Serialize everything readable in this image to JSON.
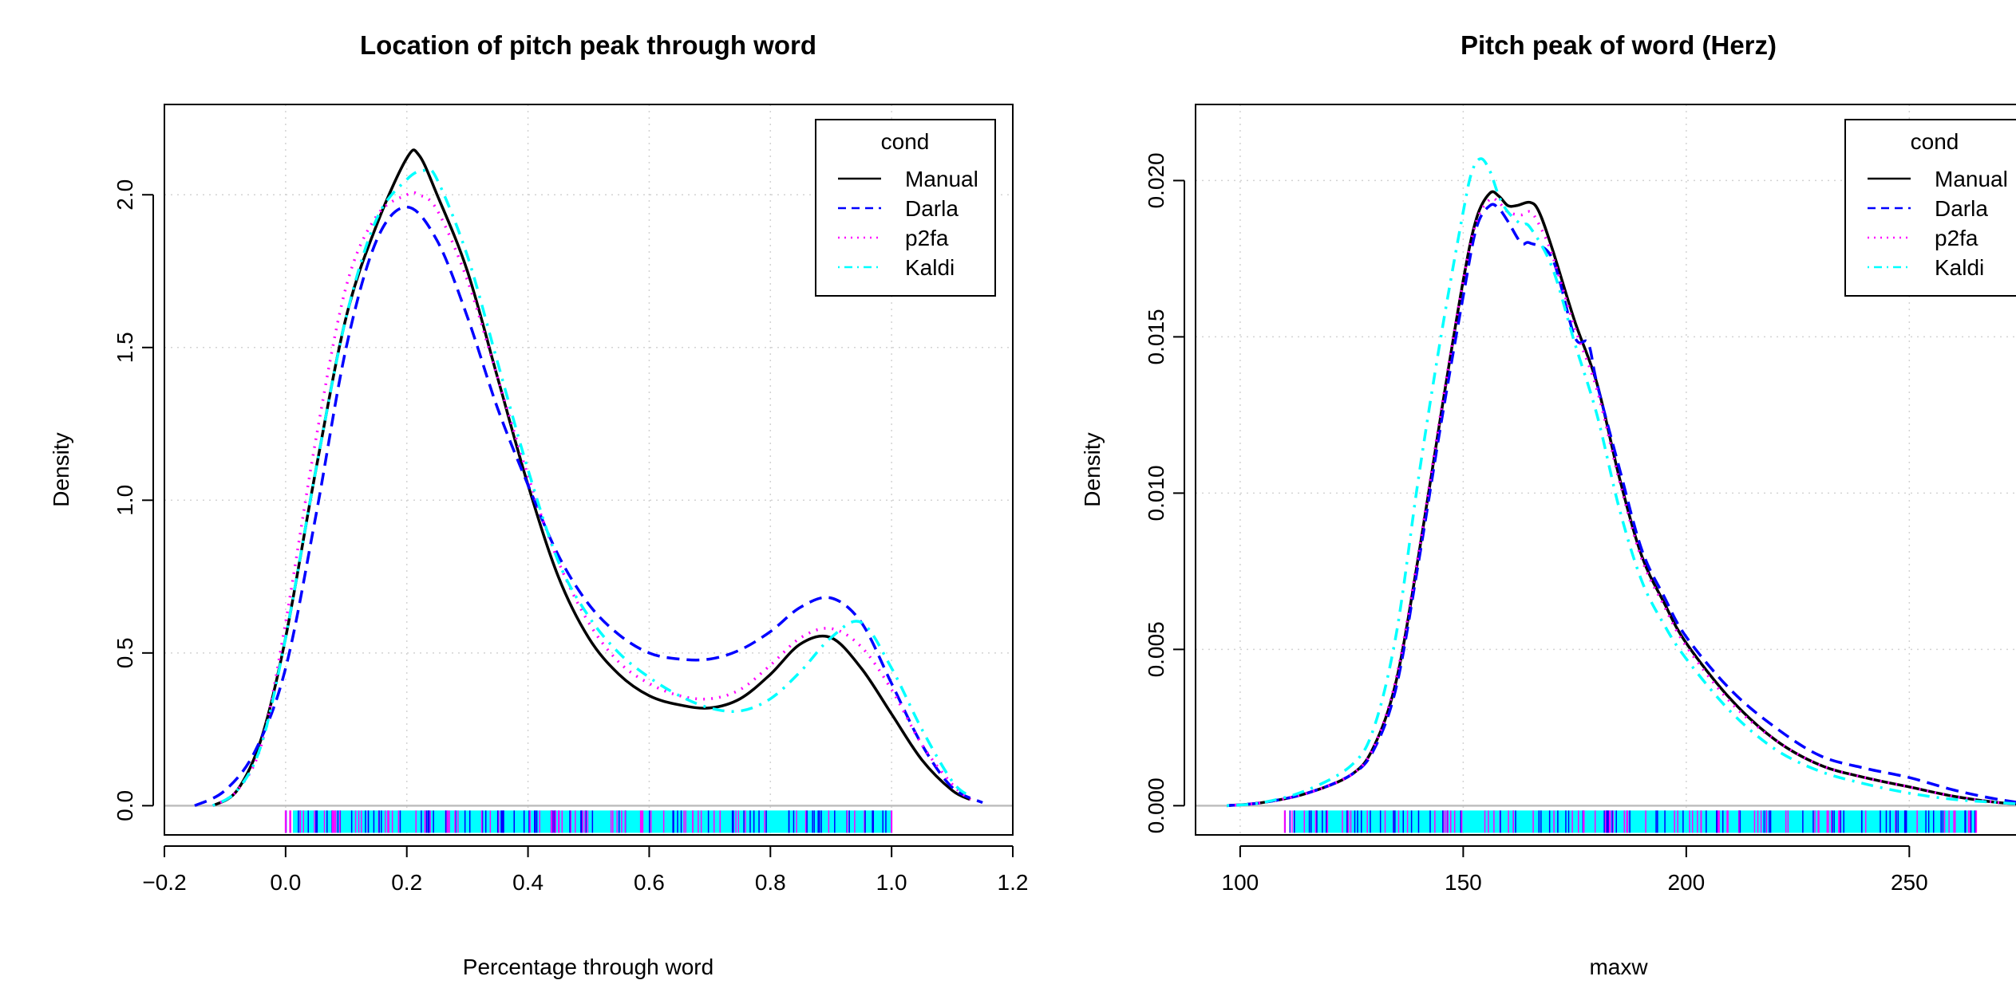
{
  "chart_data": [
    {
      "type": "line",
      "title": "Location of pitch peak through word",
      "xlabel": "Percentage through word",
      "ylabel": "Density",
      "xlim": [
        -0.2,
        1.2
      ],
      "ylim": [
        0,
        2.2
      ],
      "xticks": [
        -0.2,
        0.0,
        0.2,
        0.4,
        0.6,
        0.8,
        1.0,
        1.2
      ],
      "xtick_labels": [
        "−0.2",
        "0.0",
        "0.2",
        "0.4",
        "0.6",
        "0.8",
        "1.0",
        "1.2"
      ],
      "yticks": [
        0.0,
        0.5,
        1.0,
        1.5,
        2.0
      ],
      "ytick_labels": [
        "0.0",
        "0.5",
        "1.0",
        "1.5",
        "2.0"
      ],
      "grid": true,
      "legend": {
        "title": "cond",
        "position": "top-right"
      },
      "rug": {
        "range": [
          0.0,
          1.0
        ],
        "colors": [
          "#ff00ff",
          "#0000ff",
          "#00ffff"
        ]
      },
      "series": [
        {
          "name": "Manual",
          "color": "#000000",
          "style": "solid",
          "x": [
            -0.12,
            -0.08,
            -0.04,
            0.0,
            0.05,
            0.1,
            0.15,
            0.2,
            0.22,
            0.25,
            0.3,
            0.35,
            0.4,
            0.45,
            0.5,
            0.55,
            0.6,
            0.65,
            0.7,
            0.75,
            0.8,
            0.85,
            0.9,
            0.95,
            1.0,
            1.05,
            1.1,
            1.13
          ],
          "y": [
            0.0,
            0.05,
            0.22,
            0.55,
            1.1,
            1.6,
            1.9,
            2.12,
            2.13,
            2.0,
            1.75,
            1.4,
            1.05,
            0.75,
            0.55,
            0.43,
            0.36,
            0.33,
            0.32,
            0.35,
            0.43,
            0.53,
            0.55,
            0.45,
            0.3,
            0.15,
            0.05,
            0.02
          ]
        },
        {
          "name": "Darla",
          "color": "#0000ff",
          "style": "dashed",
          "x": [
            -0.15,
            -0.1,
            -0.05,
            0.0,
            0.05,
            0.1,
            0.15,
            0.2,
            0.25,
            0.3,
            0.35,
            0.4,
            0.45,
            0.5,
            0.55,
            0.6,
            0.65,
            0.7,
            0.75,
            0.8,
            0.85,
            0.9,
            0.95,
            1.0,
            1.05,
            1.1,
            1.15
          ],
          "y": [
            0.0,
            0.05,
            0.18,
            0.45,
            0.95,
            1.5,
            1.85,
            1.96,
            1.85,
            1.6,
            1.3,
            1.05,
            0.82,
            0.66,
            0.56,
            0.5,
            0.48,
            0.48,
            0.51,
            0.57,
            0.65,
            0.68,
            0.6,
            0.4,
            0.2,
            0.06,
            0.01
          ]
        },
        {
          "name": "p2fa",
          "color": "#ff00ff",
          "style": "dotted",
          "x": [
            -0.12,
            -0.08,
            -0.04,
            0.0,
            0.05,
            0.1,
            0.15,
            0.2,
            0.22,
            0.25,
            0.3,
            0.35,
            0.4,
            0.45,
            0.5,
            0.55,
            0.6,
            0.65,
            0.7,
            0.75,
            0.8,
            0.85,
            0.9,
            0.95,
            1.0,
            1.05,
            1.1,
            1.13
          ],
          "y": [
            0.0,
            0.05,
            0.2,
            0.6,
            1.2,
            1.7,
            1.93,
            2.0,
            2.0,
            1.95,
            1.72,
            1.4,
            1.08,
            0.8,
            0.6,
            0.47,
            0.4,
            0.36,
            0.35,
            0.38,
            0.46,
            0.55,
            0.58,
            0.52,
            0.38,
            0.2,
            0.07,
            0.02
          ]
        },
        {
          "name": "Kaldi",
          "color": "#00ffff",
          "style": "dashdot",
          "x": [
            -0.12,
            -0.08,
            -0.04,
            0.0,
            0.05,
            0.1,
            0.15,
            0.2,
            0.23,
            0.25,
            0.3,
            0.35,
            0.4,
            0.45,
            0.5,
            0.55,
            0.6,
            0.65,
            0.7,
            0.75,
            0.8,
            0.85,
            0.9,
            0.95,
            1.0,
            1.05,
            1.1,
            1.13
          ],
          "y": [
            0.0,
            0.05,
            0.2,
            0.55,
            1.1,
            1.6,
            1.92,
            2.05,
            2.08,
            2.05,
            1.8,
            1.45,
            1.1,
            0.8,
            0.62,
            0.5,
            0.42,
            0.36,
            0.32,
            0.31,
            0.35,
            0.44,
            0.55,
            0.6,
            0.45,
            0.25,
            0.08,
            0.03
          ]
        }
      ]
    },
    {
      "type": "line",
      "title": "Pitch peak of word (Herz)",
      "xlabel": "maxw",
      "ylabel": "Density",
      "xlim": [
        90,
        280
      ],
      "ylim": [
        0,
        0.0215
      ],
      "xticks": [
        100,
        150,
        200,
        250
      ],
      "xtick_labels": [
        "100",
        "150",
        "200",
        "250"
      ],
      "yticks": [
        0.0,
        0.005,
        0.01,
        0.015,
        0.02
      ],
      "ytick_labels": [
        "0.000",
        "0.005",
        "0.010",
        "0.015",
        "0.020"
      ],
      "grid": true,
      "legend": {
        "title": "cond",
        "position": "top-right"
      },
      "rug": {
        "range": [
          110,
          265
        ],
        "colors": [
          "#ff00ff",
          "#0000ff",
          "#00ffff"
        ]
      },
      "series": [
        {
          "name": "Manual",
          "color": "#000000",
          "style": "solid",
          "x": [
            97,
            105,
            115,
            125,
            130,
            135,
            140,
            145,
            150,
            153,
            156,
            158,
            160,
            162,
            165,
            167,
            170,
            175,
            180,
            185,
            190,
            195,
            200,
            210,
            220,
            230,
            240,
            250,
            260,
            270,
            280
          ],
          "y": [
            0.0,
            0.0001,
            0.0004,
            0.001,
            0.0019,
            0.004,
            0.008,
            0.0125,
            0.0168,
            0.0188,
            0.0196,
            0.0195,
            0.0192,
            0.0192,
            0.0193,
            0.019,
            0.0178,
            0.0155,
            0.0135,
            0.0105,
            0.008,
            0.0065,
            0.0052,
            0.0034,
            0.0021,
            0.0013,
            0.0009,
            0.0006,
            0.0003,
            0.0001,
            0.0
          ]
        },
        {
          "name": "Darla",
          "color": "#0000ff",
          "style": "dashed",
          "x": [
            97,
            105,
            115,
            125,
            130,
            135,
            140,
            145,
            150,
            153,
            156,
            158,
            160,
            163,
            165,
            170,
            175,
            178,
            180,
            185,
            190,
            195,
            200,
            210,
            220,
            230,
            240,
            250,
            260,
            270,
            280
          ],
          "y": [
            0.0,
            0.0001,
            0.0004,
            0.001,
            0.0018,
            0.0038,
            0.0078,
            0.0122,
            0.0163,
            0.0185,
            0.0192,
            0.0191,
            0.0187,
            0.018,
            0.018,
            0.0175,
            0.015,
            0.0148,
            0.0135,
            0.0108,
            0.0082,
            0.0067,
            0.0054,
            0.0037,
            0.0025,
            0.0016,
            0.0012,
            0.0009,
            0.0005,
            0.0002,
            0.0
          ]
        },
        {
          "name": "p2fa",
          "color": "#ff00ff",
          "style": "dotted",
          "x": [
            97,
            105,
            115,
            125,
            130,
            135,
            140,
            145,
            150,
            153,
            156,
            158,
            160,
            163,
            165,
            167,
            170,
            175,
            180,
            185,
            190,
            195,
            200,
            210,
            220,
            230,
            240,
            250,
            260,
            270,
            280
          ],
          "y": [
            0.0,
            0.0001,
            0.0004,
            0.001,
            0.0019,
            0.0041,
            0.0081,
            0.0126,
            0.0168,
            0.0187,
            0.0194,
            0.0193,
            0.019,
            0.0189,
            0.019,
            0.0186,
            0.0176,
            0.0153,
            0.0133,
            0.0104,
            0.0079,
            0.0064,
            0.0051,
            0.0033,
            0.0021,
            0.0013,
            0.0009,
            0.0006,
            0.0003,
            0.0001,
            0.0
          ]
        },
        {
          "name": "Kaldi",
          "color": "#00ffff",
          "style": "dashdot",
          "x": [
            97,
            105,
            115,
            125,
            130,
            135,
            140,
            145,
            150,
            152,
            154,
            156,
            158,
            160,
            163,
            165,
            170,
            175,
            180,
            185,
            190,
            195,
            200,
            210,
            220,
            230,
            240,
            250,
            260,
            270,
            280
          ],
          "y": [
            0.0,
            0.0001,
            0.0005,
            0.0013,
            0.0025,
            0.0055,
            0.0105,
            0.015,
            0.019,
            0.0203,
            0.0207,
            0.0203,
            0.0195,
            0.019,
            0.0186,
            0.0185,
            0.0172,
            0.0148,
            0.0125,
            0.0095,
            0.0072,
            0.0058,
            0.0047,
            0.003,
            0.0018,
            0.0011,
            0.0007,
            0.0004,
            0.0002,
            0.0001,
            0.0
          ]
        }
      ]
    }
  ]
}
